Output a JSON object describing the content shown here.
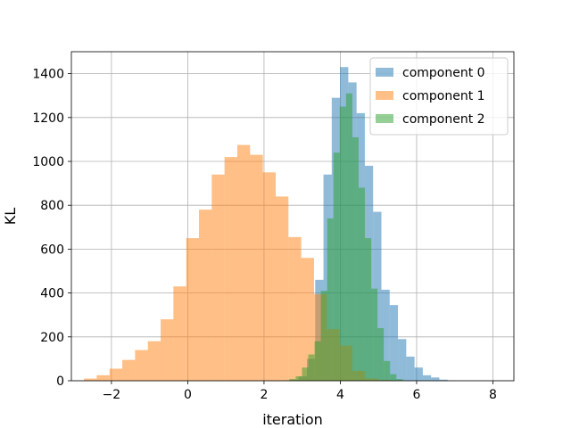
{
  "chart_data": {
    "type": "histogram",
    "xlabel": "iteration",
    "ylabel": "KL",
    "xlim": [
      -3.05,
      8.55
    ],
    "ylim": [
      0,
      1500
    ],
    "grid": true,
    "legend_position": "upper right",
    "xticks": [
      -2,
      0,
      2,
      4,
      6,
      8
    ],
    "xtick_labels": [
      "−2",
      "0",
      "2",
      "4",
      "6",
      "8"
    ],
    "yticks": [
      0,
      200,
      400,
      600,
      800,
      1000,
      1200,
      1400
    ],
    "ytick_labels": [
      "0",
      "200",
      "400",
      "600",
      "800",
      "1000",
      "1200",
      "1400"
    ],
    "series": [
      {
        "name": "component 0",
        "color": "#1f77b4",
        "opacity": 0.5,
        "bin_start": 2.69,
        "bin_width": 0.217,
        "counts": [
          3,
          20,
          100,
          460,
          940,
          1290,
          1430,
          1360,
          1220,
          980,
          770,
          415,
          345,
          190,
          110,
          60,
          25,
          15,
          5,
          2
        ]
      },
      {
        "name": "component 1",
        "color": "#ff7f0e",
        "opacity": 0.5,
        "bin_start": -2.72,
        "bin_width": 0.335,
        "counts": [
          10,
          25,
          55,
          95,
          140,
          180,
          280,
          430,
          650,
          780,
          940,
          1020,
          1075,
          1030,
          950,
          840,
          655,
          560,
          395,
          235,
          160,
          45,
          10,
          4,
          2,
          1
        ]
      },
      {
        "name": "component 2",
        "color": "#2ca02c",
        "opacity": 0.5,
        "bin_start": 2.5,
        "bin_width": 0.165,
        "counts": [
          2,
          8,
          20,
          60,
          120,
          180,
          410,
          740,
          1040,
          1250,
          1310,
          1110,
          880,
          650,
          420,
          240,
          90,
          30,
          8,
          2
        ]
      }
    ]
  }
}
